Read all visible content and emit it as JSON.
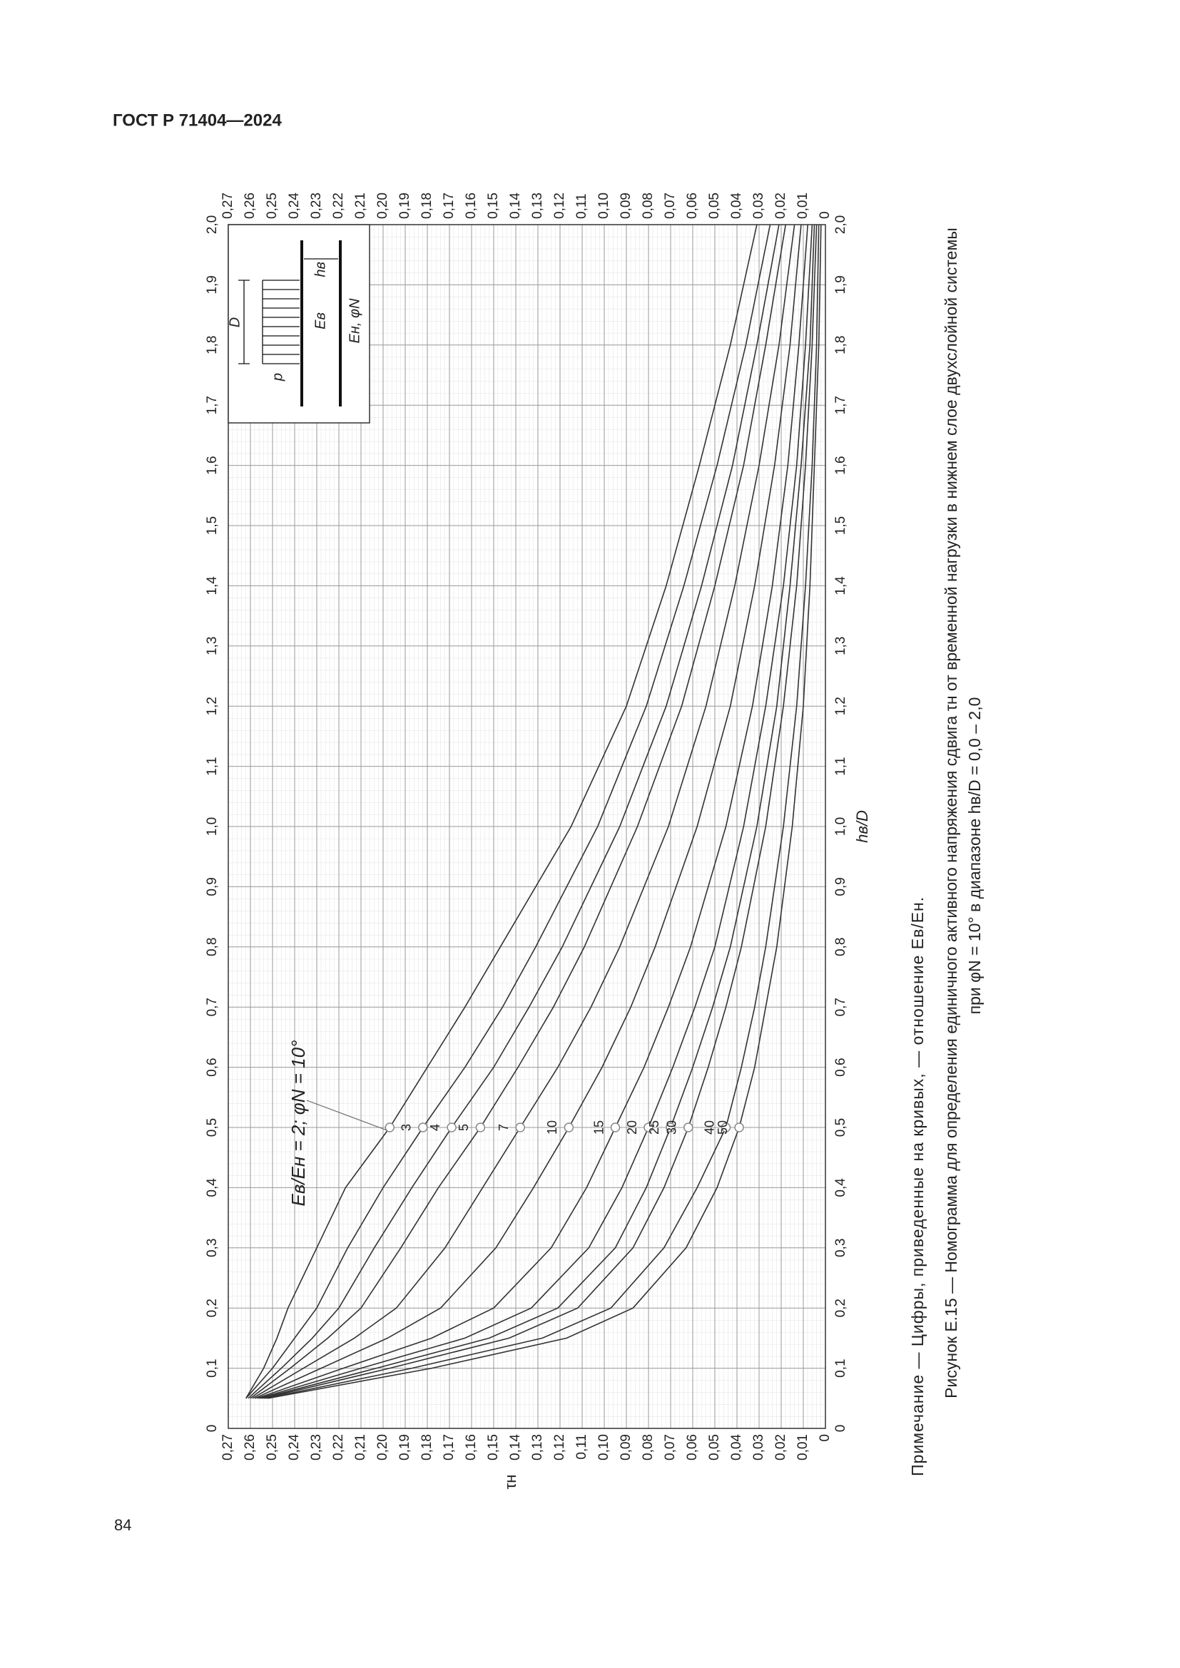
{
  "header": "ГОСТ Р 71404—2024",
  "page_number": "84",
  "note": "Примечание — Цифры, приведенные на кривых, — отношение Eв/Eн.",
  "caption": [
    "Рисунок Е.15 — Номограмма для определения единичного активного напряжения сдвига τн от временной нагрузки в нижнем слое двухслойной системы",
    "при φN = 10° в диапазоне hв/D = 0,0 – 2,0"
  ],
  "chart_data": {
    "type": "line",
    "x_label": "hв/D",
    "y_label": "τн",
    "annotation": "Eв/Eн = 2; φN = 10°",
    "inset_labels": {
      "p": "p",
      "D": "D",
      "upper": "Eв",
      "lower": "Eн, φN",
      "h": "hв"
    },
    "grid": true,
    "color": "#333333",
    "x": [
      0.05,
      0.1,
      0.15,
      0.2,
      0.3,
      0.4,
      0.5,
      0.6,
      0.7,
      0.8,
      1.0,
      1.2,
      1.4,
      1.6,
      1.8,
      2.0
    ],
    "series": [
      {
        "values": [
          0.262,
          0.254,
          0.248,
          0.243,
          0.23,
          0.217,
          0.197,
          0.18,
          0.163,
          0.147,
          0.115,
          0.09,
          0.072,
          0.057,
          0.043,
          0.031
        ]
      },
      {
        "name": "3",
        "values": [
          0.262,
          0.25,
          0.24,
          0.23,
          0.216,
          0.2,
          0.182,
          0.163,
          0.146,
          0.131,
          0.103,
          0.081,
          0.064,
          0.049,
          0.036,
          0.025
        ]
      },
      {
        "name": "4",
        "values": [
          0.261,
          0.246,
          0.232,
          0.22,
          0.204,
          0.187,
          0.169,
          0.15,
          0.134,
          0.119,
          0.093,
          0.072,
          0.056,
          0.042,
          0.031,
          0.021
        ]
      },
      {
        "name": "5",
        "values": [
          0.26,
          0.242,
          0.225,
          0.21,
          0.192,
          0.175,
          0.156,
          0.139,
          0.123,
          0.109,
          0.085,
          0.065,
          0.05,
          0.037,
          0.027,
          0.018
        ]
      },
      {
        "name": "7",
        "values": [
          0.259,
          0.236,
          0.213,
          0.194,
          0.172,
          0.155,
          0.138,
          0.121,
          0.106,
          0.093,
          0.071,
          0.054,
          0.041,
          0.03,
          0.021,
          0.014
        ]
      },
      {
        "name": "10",
        "values": [
          0.258,
          0.228,
          0.198,
          0.174,
          0.149,
          0.132,
          0.116,
          0.101,
          0.088,
          0.077,
          0.058,
          0.043,
          0.032,
          0.023,
          0.016,
          0.011
        ]
      },
      {
        "name": "15",
        "values": [
          0.257,
          0.218,
          0.178,
          0.15,
          0.124,
          0.108,
          0.095,
          0.082,
          0.071,
          0.061,
          0.045,
          0.033,
          0.024,
          0.017,
          0.012,
          0.008
        ]
      },
      {
        "name": "20",
        "values": [
          0.256,
          0.21,
          0.163,
          0.133,
          0.107,
          0.092,
          0.08,
          0.069,
          0.059,
          0.05,
          0.037,
          0.027,
          0.019,
          0.013,
          0.009,
          0.006
        ]
      },
      {
        "name": "25",
        "values": [
          0.255,
          0.203,
          0.152,
          0.121,
          0.095,
          0.081,
          0.07,
          0.06,
          0.051,
          0.043,
          0.031,
          0.022,
          0.016,
          0.011,
          0.007,
          0.005
        ]
      },
      {
        "name": "30",
        "values": [
          0.254,
          0.197,
          0.143,
          0.112,
          0.087,
          0.073,
          0.062,
          0.053,
          0.045,
          0.038,
          0.027,
          0.019,
          0.013,
          0.009,
          0.006,
          0.004
        ]
      },
      {
        "name": "40",
        "values": [
          0.253,
          0.187,
          0.128,
          0.097,
          0.073,
          0.058,
          0.045,
          0.038,
          0.032,
          0.027,
          0.019,
          0.013,
          0.009,
          0.006,
          0.004,
          0.003
        ]
      },
      {
        "name": "50",
        "values": [
          0.252,
          0.178,
          0.117,
          0.087,
          0.063,
          0.049,
          0.039,
          0.032,
          0.027,
          0.022,
          0.015,
          0.01,
          0.007,
          0.005,
          0.003,
          0.002
        ]
      }
    ],
    "xlim": [
      0,
      2.0
    ],
    "ylim": [
      0,
      0.27
    ],
    "xticks": [
      0,
      {
        "value": 0.1,
        "label": "0,1"
      },
      {
        "value": 0.2,
        "label": "0,2"
      },
      {
        "value": 0.3,
        "label": "0,3"
      },
      {
        "value": 0.4,
        "label": "0,4"
      },
      {
        "value": 0.5,
        "label": "0,5"
      },
      {
        "value": 0.6,
        "label": "0,6"
      },
      {
        "value": 0.7,
        "label": "0,7"
      },
      {
        "value": 0.8,
        "label": "0,8"
      },
      {
        "value": 0.9,
        "label": "0,9"
      },
      {
        "value": 1.0,
        "label": "1,0"
      },
      {
        "value": 1.1,
        "label": "1,1"
      },
      {
        "value": 1.2,
        "label": "1,2"
      },
      {
        "value": 1.3,
        "label": "1,3"
      },
      {
        "value": 1.4,
        "label": "1,4"
      },
      {
        "value": 1.5,
        "label": "1,5"
      },
      {
        "value": 1.6,
        "label": "1,6"
      },
      {
        "value": 1.7,
        "label": "1,7"
      },
      {
        "value": 1.8,
        "label": "1,8"
      },
      {
        "value": 1.9,
        "label": "1,9"
      },
      {
        "value": 2.0,
        "label": "2,0"
      }
    ],
    "yticks": [
      0,
      {
        "value": 0.01,
        "label": "0,01"
      },
      {
        "value": 0.02,
        "label": "0,02"
      },
      {
        "value": 0.03,
        "label": "0,03"
      },
      {
        "value": 0.04,
        "label": "0,04"
      },
      {
        "value": 0.05,
        "label": "0,05"
      },
      {
        "value": 0.06,
        "label": "0,06"
      },
      {
        "value": 0.07,
        "label": "0,07"
      },
      {
        "value": 0.08,
        "label": "0,08"
      },
      {
        "value": 0.09,
        "label": "0,09"
      },
      {
        "value": 0.1,
        "label": "0,10"
      },
      {
        "value": 0.11,
        "label": "0,11"
      },
      {
        "value": 0.12,
        "label": "0,12"
      },
      {
        "value": 0.13,
        "label": "0,13"
      },
      {
        "value": 0.14,
        "label": "0,14"
      },
      {
        "value": 0.15,
        "label": "0,15"
      },
      {
        "value": 0.16,
        "label": "0,16"
      },
      {
        "value": 0.17,
        "label": "0,17"
      },
      {
        "value": 0.18,
        "label": "0,18"
      },
      {
        "value": 0.19,
        "label": "0,19"
      },
      {
        "value": 0.2,
        "label": "0,20"
      },
      {
        "value": 0.21,
        "label": "0,21"
      },
      {
        "value": 0.22,
        "label": "0,22"
      },
      {
        "value": 0.23,
        "label": "0,23"
      },
      {
        "value": 0.24,
        "label": "0,24"
      },
      {
        "value": 0.25,
        "label": "0,25"
      },
      {
        "value": 0.26,
        "label": "0,26"
      },
      {
        "value": 0.27,
        "label": "0,27"
      }
    ]
  }
}
